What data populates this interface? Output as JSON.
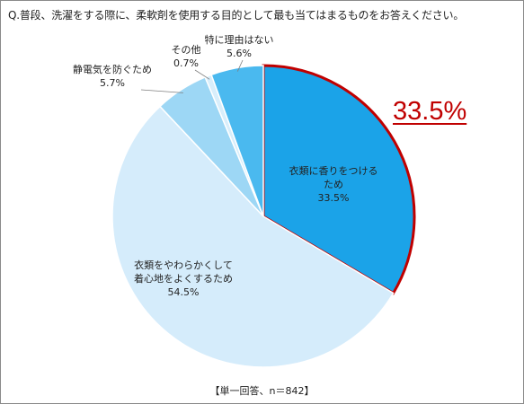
{
  "question": "Q.普段、洗濯をする際に、柔軟剤を使用する目的として最も当てはまるものをお答えください。",
  "highlight_value": "33.5%",
  "footer": "【単一回答、n＝842】",
  "colors": {
    "highlight_border": "#c00000",
    "slice_fragrance": "#1ba3e8",
    "slice_softness": "#d5ecfb",
    "slice_static": "#9dd7f5",
    "slice_other": "#d8eefb",
    "slice_no_reason": "#4ab9ef",
    "edge": "#ffffff"
  },
  "chart_data": {
    "type": "pie",
    "title": "",
    "unit": "%",
    "slices": [
      {
        "label_lines": [
          "衣類に香りをつける",
          "ため"
        ],
        "value": 33.5,
        "value_label": "33.5%",
        "color": "#1ba3e8",
        "highlight": true
      },
      {
        "label_lines": [
          "衣類をやわらかくして",
          "着心地をよくするため"
        ],
        "value": 54.5,
        "value_label": "54.5%",
        "color": "#d5ecfb",
        "highlight": false
      },
      {
        "label_lines": [
          "静電気を防ぐため"
        ],
        "value": 5.7,
        "value_label": "5.7%",
        "color": "#9dd7f5",
        "highlight": false
      },
      {
        "label_lines": [
          "その他"
        ],
        "value": 0.7,
        "value_label": "0.7%",
        "color": "#d8eefb",
        "highlight": false
      },
      {
        "label_lines": [
          "特に理由はない"
        ],
        "value": 5.6,
        "value_label": "5.6%",
        "color": "#4ab9ef",
        "highlight": false
      }
    ]
  }
}
